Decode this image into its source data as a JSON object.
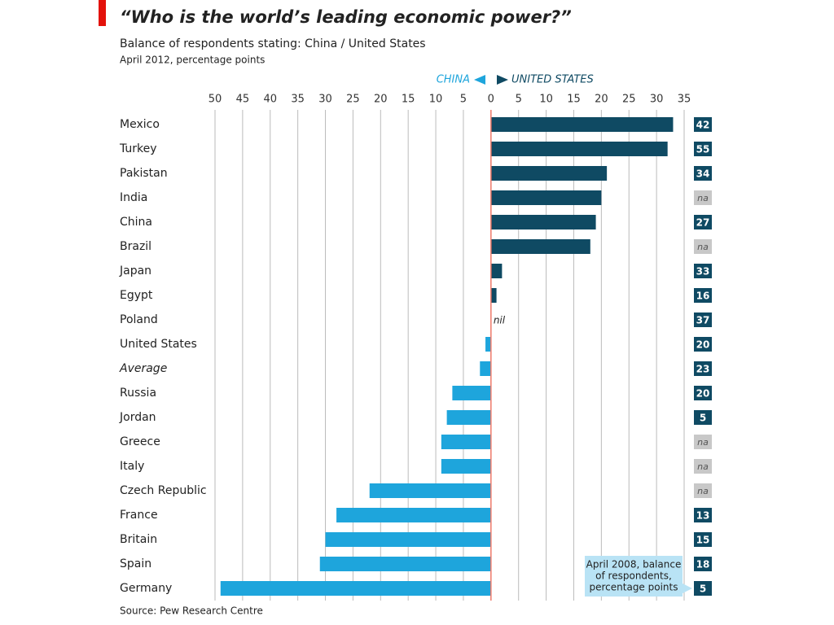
{
  "chart_data": {
    "type": "diverging-bar",
    "title": "“Who is the world’s leading economic power?”",
    "subtitle": "Balance of respondents stating: China / United States",
    "note": "April 2012, percentage points",
    "left_label": "CHINA",
    "right_label": "UNITED STATES",
    "source": "Source: Pew Research Centre",
    "categories": [
      "Mexico",
      "Turkey",
      "Pakistan",
      "India",
      "China",
      "Brazil",
      "Japan",
      "Egypt",
      "Poland",
      "United States",
      "Average",
      "Russia",
      "Jordan",
      "Greece",
      "Italy",
      "Czech Republic",
      "France",
      "Britain",
      "Spain",
      "Germany"
    ],
    "values": [
      33,
      32,
      21,
      20,
      19,
      18,
      2,
      1,
      0,
      -1,
      -2,
      -7,
      -8,
      -9,
      -9,
      -22,
      -28,
      -30,
      -31,
      -49
    ],
    "zero_label": "nil",
    "colors": {
      "positive": "#0f4a63",
      "negative": "#1ea5dc"
    },
    "xlim": [
      -50,
      35
    ],
    "xticks": [
      {
        "value": -50,
        "label": "50"
      },
      {
        "value": -45,
        "label": "45"
      },
      {
        "value": -40,
        "label": "40"
      },
      {
        "value": -35,
        "label": "35"
      },
      {
        "value": -30,
        "label": "30"
      },
      {
        "value": -25,
        "label": "25"
      },
      {
        "value": -20,
        "label": "20"
      },
      {
        "value": -15,
        "label": "15"
      },
      {
        "value": -10,
        "label": "10"
      },
      {
        "value": -5,
        "label": "5"
      },
      0,
      5,
      10,
      15,
      20,
      25,
      30,
      35
    ],
    "grid": true,
    "comparison": {
      "label": [
        "April 2008, balance",
        "of respondents,",
        "percentage points"
      ],
      "values": [
        42,
        55,
        34,
        null,
        27,
        null,
        33,
        16,
        37,
        20,
        23,
        20,
        5,
        null,
        null,
        null,
        13,
        15,
        18,
        5
      ],
      "na_label": "na",
      "color": "#0f4a63",
      "na_color": "#c8c8c8",
      "callout_color": "#b9e3f5"
    }
  }
}
